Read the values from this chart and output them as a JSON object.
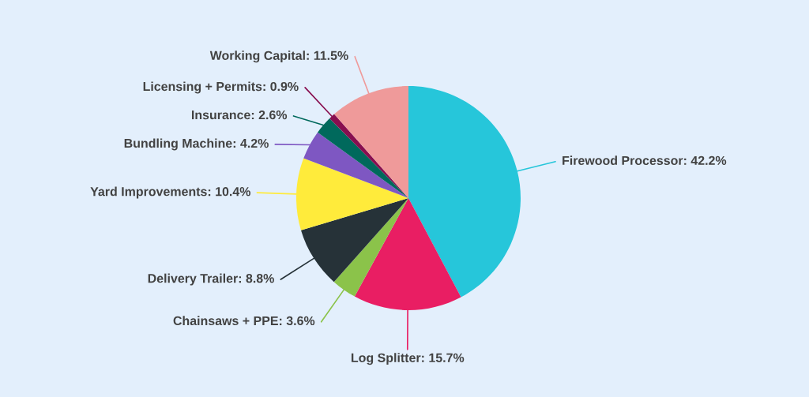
{
  "chart_data": {
    "type": "pie",
    "categories": [
      "Firewood Processor",
      "Log Splitter",
      "Chainsaws + PPE",
      "Delivery Trailer",
      "Yard Improvements",
      "Bundling Machine",
      "Insurance",
      "Licensing + Permits",
      "Working Capital"
    ],
    "values": [
      42.2,
      15.7,
      3.6,
      8.8,
      10.4,
      4.2,
      2.6,
      0.9,
      11.5
    ],
    "value_labels": [
      "42.2%",
      "15.7%",
      "3.6%",
      "8.8%",
      "10.4%",
      "4.2%",
      "2.6%",
      "0.9%",
      "11.5%"
    ],
    "colors": [
      "#26c6da",
      "#e91e63",
      "#8bc34a",
      "#263238",
      "#ffeb3b",
      "#7e57c2",
      "#00695c",
      "#880e4f",
      "#ef9a9a"
    ]
  }
}
